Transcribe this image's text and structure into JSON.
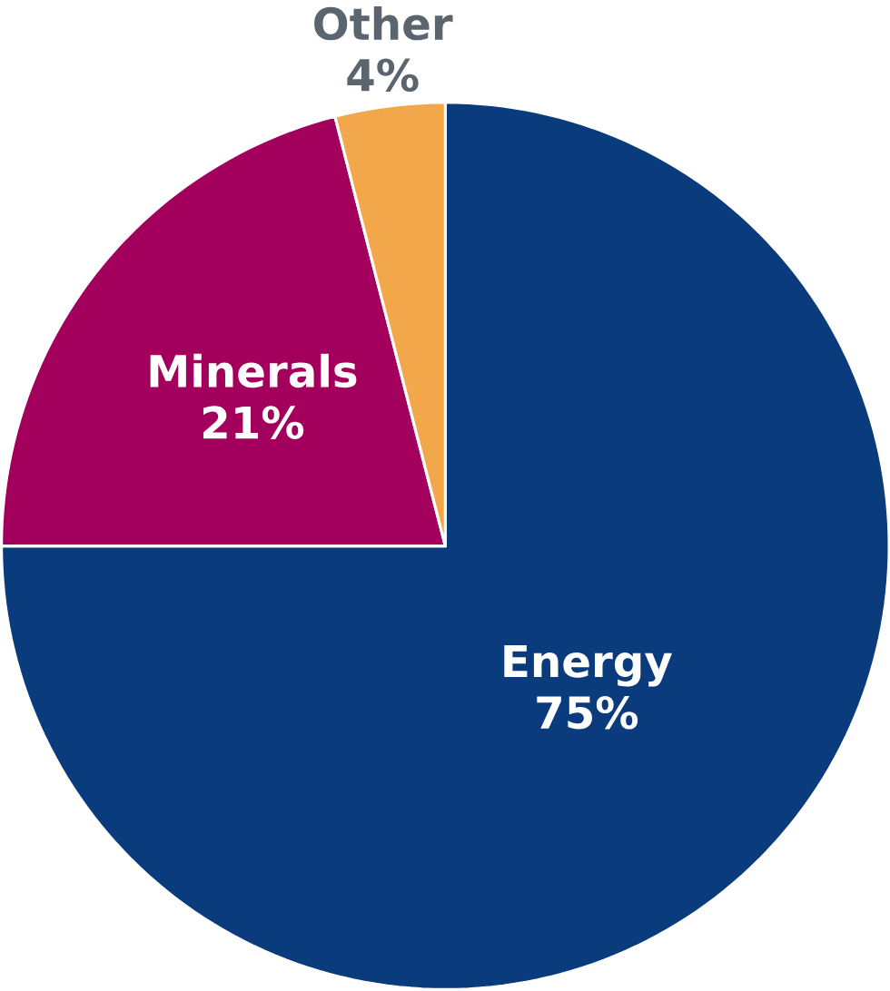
{
  "chart_data": {
    "type": "pie",
    "categories": [
      "Energy",
      "Minerals",
      "Other"
    ],
    "values": [
      75,
      21,
      4
    ],
    "colors": [
      "#0a3b7c",
      "#a3005d",
      "#f2a84a"
    ],
    "value_labels": [
      "75%",
      "21%",
      "4%"
    ]
  }
}
